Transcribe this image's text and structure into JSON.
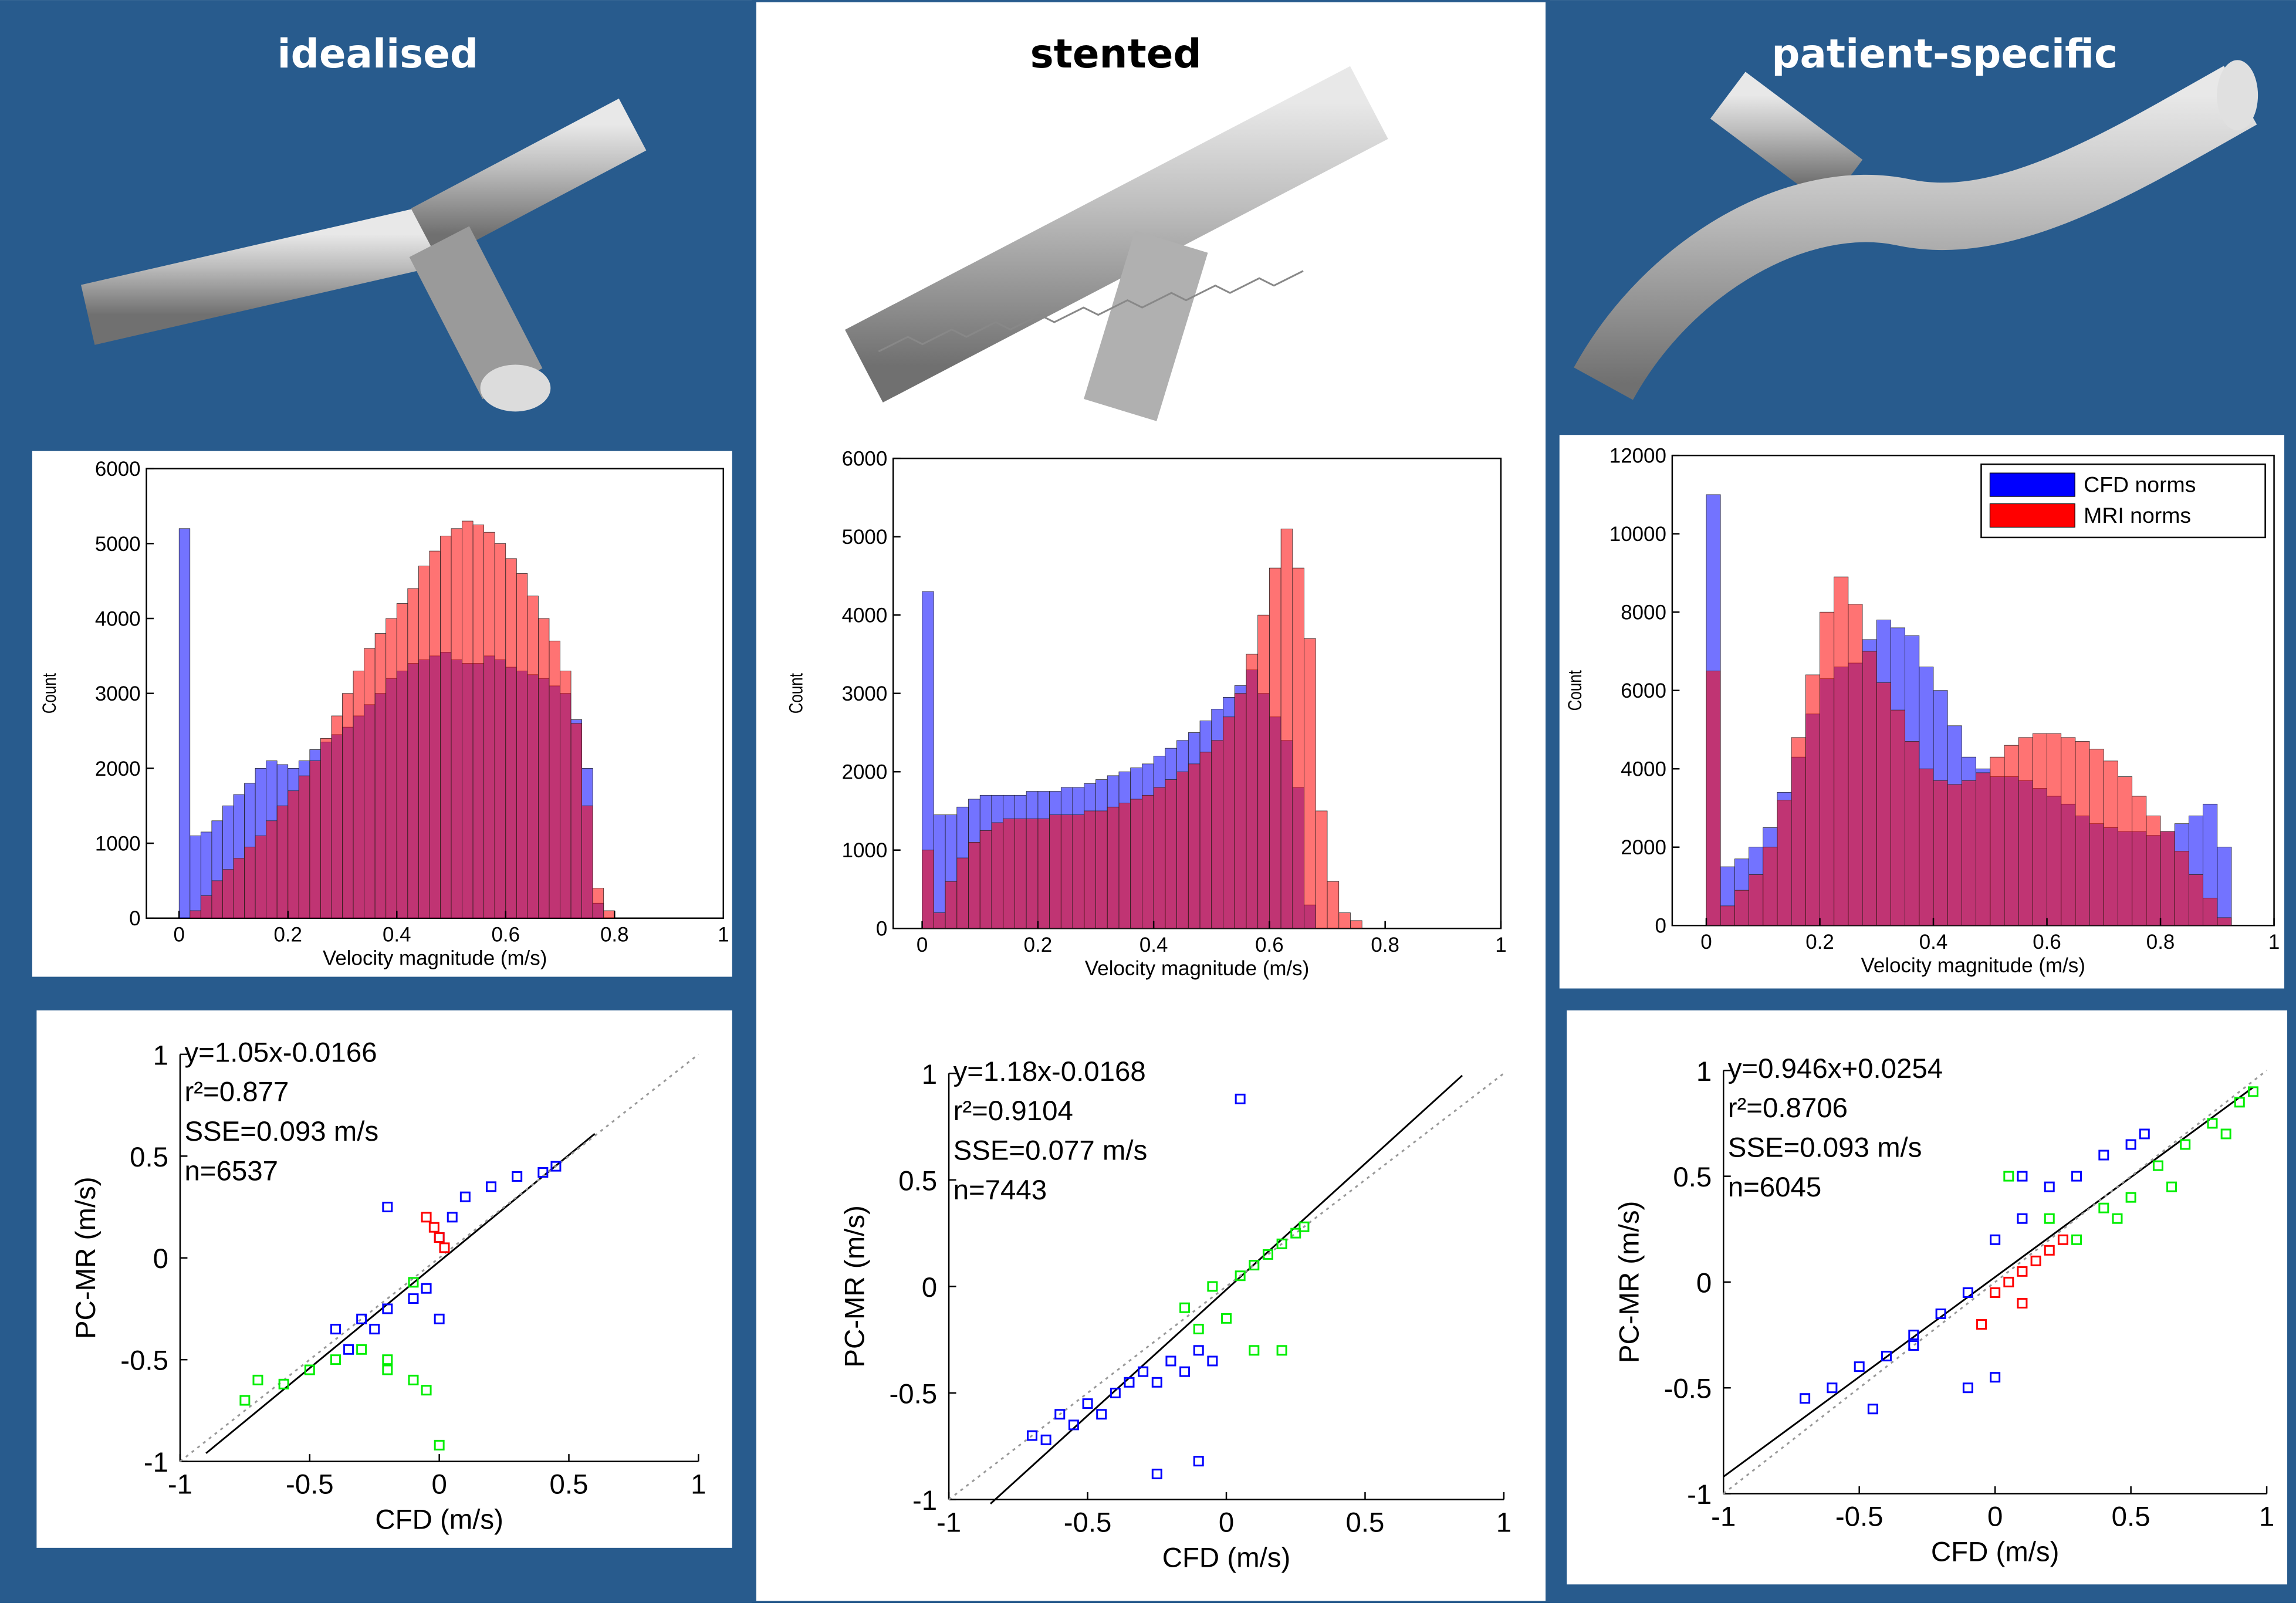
{
  "panels": [
    {
      "title": "idealised"
    },
    {
      "title": "stented"
    },
    {
      "title": "patient-specific"
    }
  ],
  "chart_data": [
    {
      "type": "histogram",
      "xlabel": "Velocity magnitude (m/s)",
      "ylabel": "Count",
      "bins": [
        0,
        0.02,
        0.04,
        0.06,
        0.08,
        0.1,
        0.12,
        0.14,
        0.16,
        0.18,
        0.2,
        0.22,
        0.24,
        0.26,
        0.28,
        0.3,
        0.32,
        0.34,
        0.36,
        0.38,
        0.4,
        0.42,
        0.44,
        0.46,
        0.48,
        0.5,
        0.52,
        0.54,
        0.56,
        0.58,
        0.6,
        0.62,
        0.64,
        0.66,
        0.68,
        0.7,
        0.72,
        0.74,
        0.76,
        0.78,
        0.8
      ],
      "series": [
        {
          "color": "#0000ff",
          "values": [
            5200,
            1100,
            1150,
            1300,
            1500,
            1650,
            1800,
            2000,
            2100,
            2050,
            2000,
            2100,
            2250,
            2350,
            2450,
            2550,
            2700,
            2850,
            3000,
            3200,
            3300,
            3400,
            3450,
            3500,
            3550,
            3450,
            3400,
            3400,
            3500,
            3450,
            3350,
            3300,
            3250,
            3200,
            3100,
            3000,
            2650,
            2000,
            200,
            0
          ]
        },
        {
          "color": "#ff0000",
          "values": [
            0,
            100,
            300,
            500,
            650,
            800,
            950,
            1100,
            1300,
            1500,
            1700,
            1900,
            2100,
            2400,
            2700,
            3000,
            3300,
            3600,
            3800,
            4000,
            4200,
            4400,
            4700,
            4900,
            5100,
            5200,
            5300,
            5250,
            5150,
            5000,
            4800,
            4600,
            4300,
            4000,
            3700,
            3300,
            2600,
            1500,
            400,
            100
          ]
        }
      ],
      "xlim": [
        -0.06,
        1
      ],
      "xticks": [
        0,
        0.2,
        0.4,
        0.6,
        0.8,
        1
      ],
      "ylim": [
        0,
        6000
      ],
      "yticks": [
        0,
        1000,
        2000,
        3000,
        4000,
        5000,
        6000
      ]
    },
    {
      "type": "scatter",
      "xlabel": "CFD (m/s)",
      "ylabel": "PC-MR (m/s)",
      "annotations": [
        "y=1.05x-0.0166",
        "r²=0.877",
        "SSE=0.093 m/s",
        "n=6537"
      ],
      "series": [
        {
          "color": "#0000ff",
          "x": [
            -0.4,
            -0.35,
            -0.3,
            -0.25,
            -0.2,
            -0.1,
            -0.05,
            0,
            0.05,
            0.1,
            0.2,
            0.3,
            0.4,
            0.45,
            0,
            -0.2
          ],
          "y": [
            -0.35,
            -0.45,
            -0.3,
            -0.35,
            -0.25,
            -0.2,
            -0.15,
            -0.3,
            0.2,
            0.3,
            0.35,
            0.4,
            0.42,
            0.45,
            0.1,
            0.25
          ]
        },
        {
          "color": "#00ee00",
          "x": [
            -0.75,
            -0.7,
            -0.6,
            -0.5,
            -0.4,
            -0.3,
            -0.2,
            -0.1,
            -0.05,
            0,
            -0.2,
            -0.1
          ],
          "y": [
            -0.7,
            -0.6,
            -0.62,
            -0.55,
            -0.5,
            -0.45,
            -0.5,
            -0.6,
            -0.65,
            -0.92,
            -0.55,
            -0.12
          ]
        },
        {
          "color": "#ff0000",
          "x": [
            -0.05,
            -0.02,
            0,
            0.02
          ],
          "y": [
            0.2,
            0.15,
            0.1,
            0.05
          ]
        }
      ],
      "lines": [
        {
          "color": "#000000",
          "style": "solid",
          "x": [
            -0.9,
            0.6
          ],
          "y": [
            -0.96,
            0.61
          ]
        },
        {
          "color": "#999999",
          "style": "dotted",
          "x": [
            -1,
            1
          ],
          "y": [
            -1,
            1
          ]
        }
      ],
      "xlim": [
        -1,
        1
      ],
      "xticks": [
        -1,
        -0.5,
        0,
        0.5,
        1
      ],
      "ylim": [
        -1,
        1
      ],
      "yticks": [
        -1,
        -0.5,
        0,
        0.5,
        1
      ]
    },
    {
      "type": "histogram",
      "xlabel": "Velocity magnitude (m/s)",
      "ylabel": "Count",
      "bins": [
        0,
        0.02,
        0.04,
        0.06,
        0.08,
        0.1,
        0.12,
        0.14,
        0.16,
        0.18,
        0.2,
        0.22,
        0.24,
        0.26,
        0.28,
        0.3,
        0.32,
        0.34,
        0.36,
        0.38,
        0.4,
        0.42,
        0.44,
        0.46,
        0.48,
        0.5,
        0.52,
        0.54,
        0.56,
        0.58,
        0.6,
        0.62,
        0.64,
        0.66,
        0.68,
        0.7,
        0.72,
        0.74,
        0.76,
        0.78,
        0.8
      ],
      "series": [
        {
          "color": "#0000ff",
          "values": [
            4300,
            1450,
            1450,
            1550,
            1650,
            1700,
            1700,
            1700,
            1700,
            1750,
            1750,
            1750,
            1800,
            1800,
            1850,
            1900,
            1950,
            2000,
            2050,
            2100,
            2200,
            2300,
            2400,
            2500,
            2650,
            2800,
            2950,
            3100,
            3300,
            3000,
            2700,
            2400,
            1800,
            300,
            0,
            0,
            0,
            0,
            0,
            0
          ]
        },
        {
          "color": "#ff0000",
          "values": [
            1000,
            200,
            600,
            900,
            1100,
            1250,
            1350,
            1400,
            1400,
            1400,
            1400,
            1450,
            1450,
            1450,
            1500,
            1500,
            1550,
            1600,
            1650,
            1700,
            1800,
            1900,
            2000,
            2100,
            2250,
            2400,
            2700,
            3000,
            3500,
            4000,
            4600,
            5100,
            4600,
            3700,
            1500,
            600,
            200,
            100,
            0,
            0
          ]
        }
      ],
      "xlim": [
        -0.05,
        1
      ],
      "xticks": [
        0,
        0.2,
        0.4,
        0.6,
        0.8,
        1
      ],
      "ylim": [
        0,
        6000
      ],
      "yticks": [
        0,
        1000,
        2000,
        3000,
        4000,
        5000,
        6000
      ]
    },
    {
      "type": "scatter",
      "xlabel": "CFD (m/s)",
      "ylabel": "PC-MR (m/s)",
      "annotations": [
        "y=1.18x-0.0168",
        "r²=0.9104",
        "SSE=0.077 m/s",
        "n=7443"
      ],
      "series": [
        {
          "color": "#0000ff",
          "x": [
            -0.7,
            -0.65,
            -0.6,
            -0.55,
            -0.5,
            -0.45,
            -0.4,
            -0.35,
            -0.3,
            -0.25,
            -0.2,
            -0.15,
            -0.1,
            -0.05,
            -0.25,
            -0.1,
            0.05
          ],
          "y": [
            -0.7,
            -0.72,
            -0.6,
            -0.65,
            -0.55,
            -0.6,
            -0.5,
            -0.45,
            -0.4,
            -0.45,
            -0.35,
            -0.4,
            -0.3,
            -0.35,
            -0.88,
            -0.82,
            0.88
          ]
        },
        {
          "color": "#00ee00",
          "x": [
            -0.15,
            -0.1,
            -0.05,
            0,
            0.05,
            0.1,
            0.15,
            0.2,
            0.25,
            0.28,
            0.1,
            0.2
          ],
          "y": [
            -0.1,
            -0.2,
            0,
            -0.15,
            0.05,
            0.1,
            0.15,
            0.2,
            0.25,
            0.28,
            -0.3,
            -0.3
          ]
        },
        {
          "color": "#ff0000",
          "x": [],
          "y": []
        }
      ],
      "lines": [
        {
          "color": "#000000",
          "style": "solid",
          "x": [
            -0.85,
            0.85
          ],
          "y": [
            -1.02,
            0.99
          ]
        },
        {
          "color": "#999999",
          "style": "dotted",
          "x": [
            -1,
            1
          ],
          "y": [
            -1,
            1
          ]
        }
      ],
      "xlim": [
        -1,
        1
      ],
      "xticks": [
        -1,
        -0.5,
        0,
        0.5,
        1
      ],
      "ylim": [
        -1,
        1
      ],
      "yticks": [
        -1,
        -0.5,
        0,
        0.5,
        1
      ]
    },
    {
      "type": "histogram",
      "xlabel": "Velocity magnitude (m/s)",
      "ylabel": "Count",
      "legend": "upper right",
      "bins": [
        0,
        0.025,
        0.05,
        0.075,
        0.1,
        0.125,
        0.15,
        0.175,
        0.2,
        0.225,
        0.25,
        0.275,
        0.3,
        0.325,
        0.35,
        0.375,
        0.4,
        0.425,
        0.45,
        0.475,
        0.5,
        0.525,
        0.55,
        0.575,
        0.6,
        0.625,
        0.65,
        0.675,
        0.7,
        0.725,
        0.75,
        0.775,
        0.8,
        0.825,
        0.85,
        0.875,
        0.9,
        0.925,
        0.95
      ],
      "series": [
        {
          "name": "CFD norms",
          "color": "#0000ff",
          "values": [
            11000,
            1500,
            1700,
            2000,
            2500,
            3400,
            4300,
            5400,
            6300,
            6600,
            6700,
            7300,
            7800,
            7600,
            7400,
            6600,
            6000,
            5100,
            4300,
            4000,
            3800,
            3800,
            3700,
            3500,
            3300,
            3100,
            2800,
            2600,
            2500,
            2400,
            2400,
            2300,
            2400,
            2600,
            2800,
            3100,
            2000,
            0
          ]
        },
        {
          "name": "MRI norms",
          "color": "#ff0000",
          "values": [
            6500,
            500,
            900,
            1300,
            2000,
            3200,
            4800,
            6400,
            8000,
            8900,
            8200,
            7000,
            6200,
            5500,
            4700,
            4000,
            3700,
            3600,
            3700,
            3900,
            4300,
            4600,
            4800,
            4900,
            4900,
            4800,
            4700,
            4500,
            4200,
            3800,
            3300,
            2800,
            2400,
            1900,
            1300,
            700,
            200,
            0
          ]
        }
      ],
      "xlim": [
        -0.06,
        1
      ],
      "xticks": [
        0,
        0.2,
        0.4,
        0.6,
        0.8,
        1
      ],
      "ylim": [
        0,
        12000
      ],
      "yticks": [
        0,
        2000,
        4000,
        6000,
        8000,
        10000,
        12000
      ]
    },
    {
      "type": "scatter",
      "xlabel": "CFD (m/s)",
      "ylabel": "PC-MR (m/s)",
      "annotations": [
        "y=0.946x+0.0254",
        "r²=0.8706",
        "SSE=0.093 m/s",
        "n=6045"
      ],
      "series": [
        {
          "color": "#0000ff",
          "x": [
            -0.7,
            -0.6,
            -0.5,
            -0.4,
            -0.3,
            -0.2,
            -0.1,
            0,
            0.1,
            0.2,
            0.3,
            0.4,
            0.5,
            0.55,
            -0.45,
            -0.1,
            0,
            -0.3,
            0.1
          ],
          "y": [
            -0.55,
            -0.5,
            -0.4,
            -0.35,
            -0.25,
            -0.15,
            -0.05,
            0.2,
            0.3,
            0.45,
            0.5,
            0.6,
            0.65,
            0.7,
            -0.6,
            -0.5,
            -0.45,
            -0.3,
            0.5
          ]
        },
        {
          "color": "#00ee00",
          "x": [
            0.2,
            0.3,
            0.4,
            0.5,
            0.6,
            0.7,
            0.8,
            0.9,
            0.95,
            0.45,
            0.65,
            0.85,
            0.05
          ],
          "y": [
            0.3,
            0.2,
            0.35,
            0.4,
            0.55,
            0.65,
            0.75,
            0.85,
            0.9,
            0.3,
            0.45,
            0.7,
            0.5
          ]
        },
        {
          "color": "#ff0000",
          "x": [
            0,
            0.05,
            0.1,
            0.15,
            0.2,
            0.25,
            0.1,
            -0.05
          ],
          "y": [
            -0.05,
            0,
            0.05,
            0.1,
            0.15,
            0.2,
            -0.1,
            -0.2
          ]
        }
      ],
      "lines": [
        {
          "color": "#000000",
          "style": "solid",
          "x": [
            -1,
            0.95
          ],
          "y": [
            -0.92,
            0.92
          ]
        },
        {
          "color": "#999999",
          "style": "dotted",
          "x": [
            -1,
            1
          ],
          "y": [
            -1,
            1
          ]
        }
      ],
      "xlim": [
        -1,
        1
      ],
      "xticks": [
        -1,
        -0.5,
        0,
        0.5,
        1
      ],
      "ylim": [
        -1,
        1
      ],
      "yticks": [
        -1,
        -0.5,
        0,
        0.5,
        1
      ]
    }
  ]
}
